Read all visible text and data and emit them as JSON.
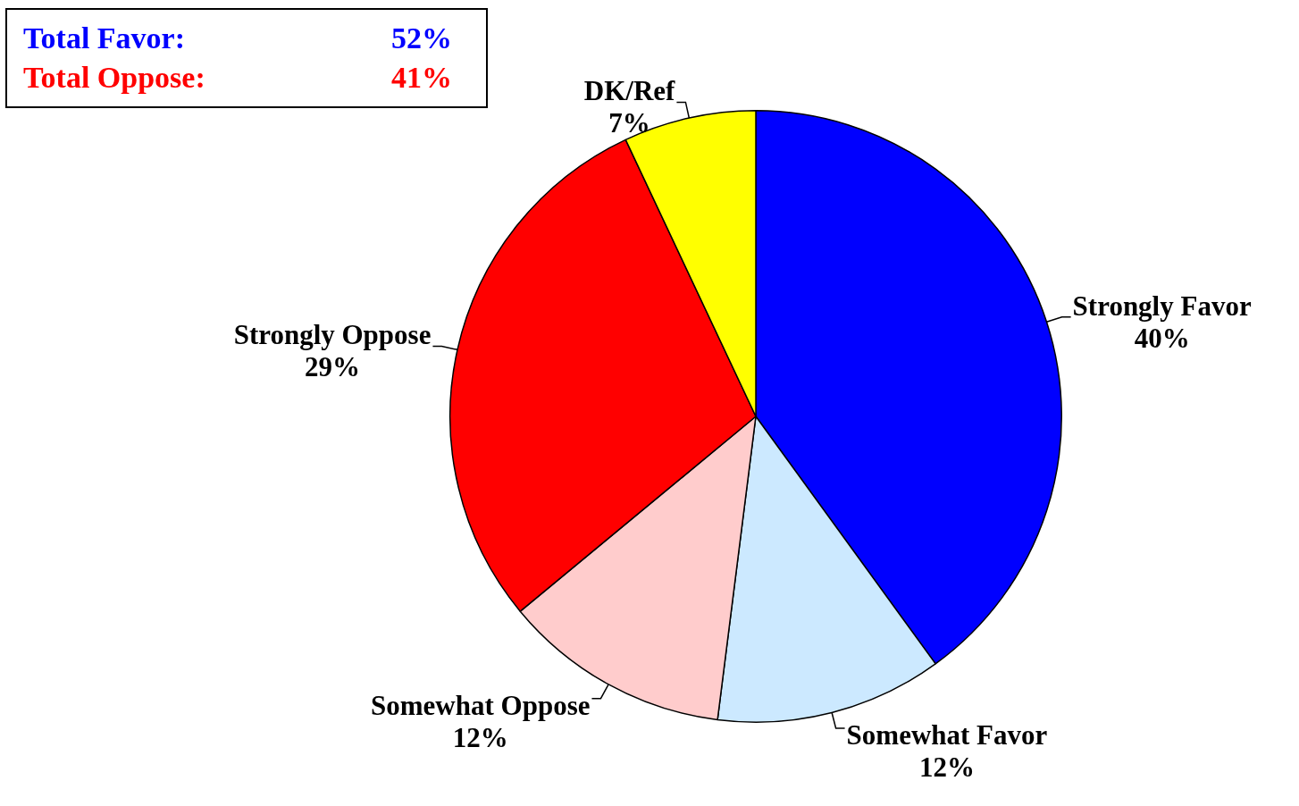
{
  "chart_data": {
    "type": "pie",
    "categories": [
      "Strongly Favor",
      "Somewhat Favor",
      "Somewhat Oppose",
      "Strongly Oppose",
      "DK/Ref"
    ],
    "values": [
      40,
      12,
      12,
      29,
      7
    ],
    "colors": [
      "#0000ff",
      "#cce9ff",
      "#ffcccc",
      "#ff0000",
      "#ffff00"
    ],
    "value_labels": [
      "40%",
      "12%",
      "12%",
      "29%",
      "7%"
    ],
    "annotations": [
      "Total Favor:",
      "52%",
      "Total Oppose:",
      "41%"
    ],
    "legend": false
  }
}
